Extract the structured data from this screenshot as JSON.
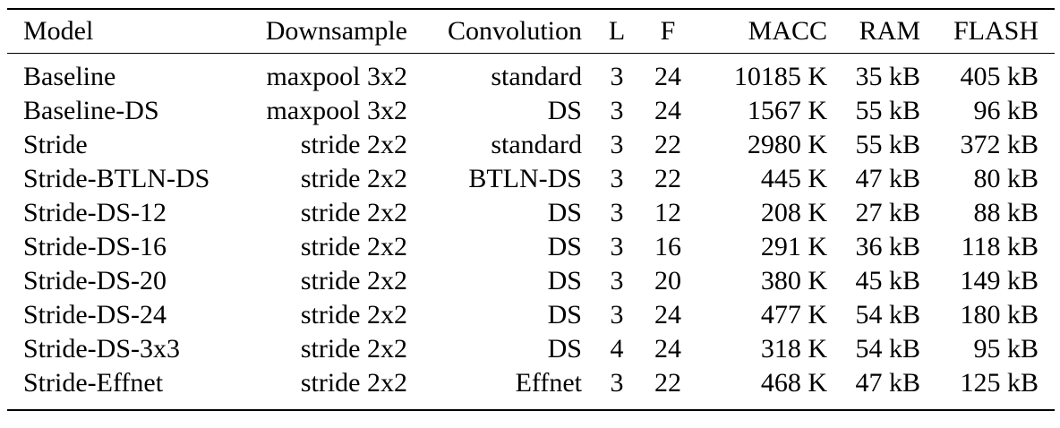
{
  "table": {
    "columns": [
      {
        "key": "model",
        "label": "Model",
        "align": "left"
      },
      {
        "key": "downsample",
        "label": "Downsample",
        "align": "right"
      },
      {
        "key": "convolution",
        "label": "Convolution",
        "align": "right"
      },
      {
        "key": "l",
        "label": "L",
        "align": "center"
      },
      {
        "key": "f",
        "label": "F",
        "align": "center"
      },
      {
        "key": "macc",
        "label": "MACC",
        "align": "right"
      },
      {
        "key": "ram",
        "label": "RAM",
        "align": "right"
      },
      {
        "key": "flash",
        "label": "FLASH",
        "align": "right"
      }
    ],
    "rows": [
      [
        "Baseline",
        "maxpool 3x2",
        "standard",
        "3",
        "24",
        "10185 K",
        "35 kB",
        "405 kB"
      ],
      [
        "Baseline-DS",
        "maxpool 3x2",
        "DS",
        "3",
        "24",
        "1567 K",
        "55 kB",
        "96 kB"
      ],
      [
        "Stride",
        "stride 2x2",
        "standard",
        "3",
        "22",
        "2980 K",
        "55 kB",
        "372 kB"
      ],
      [
        "Stride-BTLN-DS",
        "stride 2x2",
        "BTLN-DS",
        "3",
        "22",
        "445 K",
        "47 kB",
        "80 kB"
      ],
      [
        "Stride-DS-12",
        "stride 2x2",
        "DS",
        "3",
        "12",
        "208 K",
        "27 kB",
        "88 kB"
      ],
      [
        "Stride-DS-16",
        "stride 2x2",
        "DS",
        "3",
        "16",
        "291 K",
        "36 kB",
        "118 kB"
      ],
      [
        "Stride-DS-20",
        "stride 2x2",
        "DS",
        "3",
        "20",
        "380 K",
        "45 kB",
        "149 kB"
      ],
      [
        "Stride-DS-24",
        "stride 2x2",
        "DS",
        "3",
        "24",
        "477 K",
        "54 kB",
        "180 kB"
      ],
      [
        "Stride-DS-3x3",
        "stride 2x2",
        "DS",
        "4",
        "24",
        "318 K",
        "54 kB",
        "95 kB"
      ],
      [
        "Stride-Effnet",
        "stride 2x2",
        "Effnet",
        "3",
        "22",
        "468 K",
        "47 kB",
        "125 kB"
      ]
    ]
  },
  "colors": {
    "text": "#000000",
    "rule": "#000000",
    "background": "#ffffff"
  }
}
